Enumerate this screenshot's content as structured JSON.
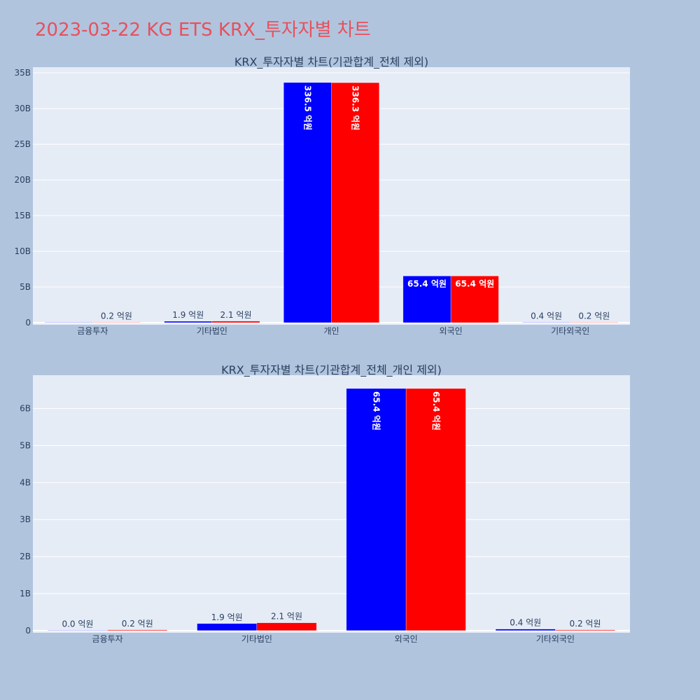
{
  "title": "2023-03-22 KG ETS KRX_투자자별 차트",
  "colors": {
    "series_a": "#0000ff",
    "series_b": "#ff0000",
    "plot_bg": "#e5ecf6",
    "page_bg": "#b0c4de",
    "title": "#e8505b"
  },
  "chart_data": [
    {
      "type": "bar",
      "title": "KRX_투자자별 차트(기관합계_전체 제외)",
      "categories": [
        "금융투자",
        "기타법인",
        "개인",
        "외국인",
        "기타외국인"
      ],
      "series": [
        {
          "values": [
            0.0,
            0.19,
            33.65,
            6.54,
            0.04
          ],
          "labels": [
            "",
            "1.9 억원",
            "336.5 억원",
            "65.4 억원",
            "0.4 억원"
          ]
        },
        {
          "values": [
            0.02,
            0.21,
            33.63,
            6.54,
            0.02
          ],
          "labels": [
            "0.2 억원",
            "2.1 억원",
            "336.3 억원",
            "65.4 억원",
            "0.2 억원"
          ]
        }
      ],
      "yticks": [
        0,
        5,
        10,
        15,
        20,
        25,
        30,
        35
      ],
      "ytick_labels": [
        "0",
        "5B",
        "10B",
        "15B",
        "20B",
        "25B",
        "30B",
        "35B"
      ],
      "ylim": [
        -0.3,
        35.8
      ],
      "grid": true
    },
    {
      "type": "bar",
      "title": "KRX_투자자별 차트(기관합계_전체_개인 제외)",
      "categories": [
        "금융투자",
        "기타법인",
        "외국인",
        "기타외국인"
      ],
      "series": [
        {
          "values": [
            0.0,
            0.19,
            6.54,
            0.04
          ],
          "labels": [
            "0.0 억원",
            "1.9 억원",
            "65.4 억원",
            "0.4 억원"
          ]
        },
        {
          "values": [
            0.02,
            0.21,
            6.54,
            0.02
          ],
          "labels": [
            "0.2 억원",
            "2.1 억원",
            "65.4 억원",
            "0.2 억원"
          ]
        }
      ],
      "yticks": [
        0,
        1,
        2,
        3,
        4,
        5,
        6
      ],
      "ytick_labels": [
        "0",
        "1B",
        "2B",
        "3B",
        "4B",
        "5B",
        "6B"
      ],
      "ylim": [
        -0.06,
        6.9
      ],
      "grid": true
    }
  ]
}
